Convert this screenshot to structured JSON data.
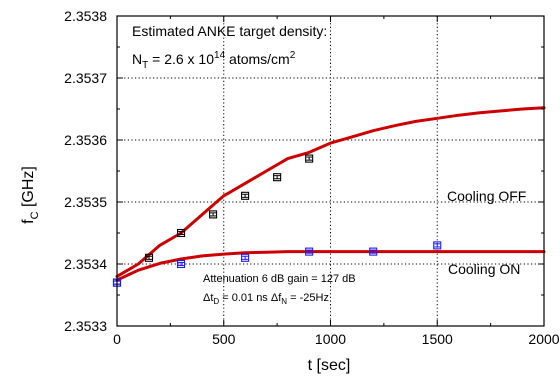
{
  "chart_data": {
    "type": "scatter",
    "title": "",
    "xlabel": "t [sec]",
    "ylabel_main": "f",
    "ylabel_sub": "C",
    "ylabel_unit": " [GHz]",
    "xlim": [
      0,
      2000
    ],
    "ylim": [
      2.3533,
      2.3538
    ],
    "x_ticks": [
      0,
      500,
      1000,
      1500,
      2000
    ],
    "x_tick_labels": [
      "0",
      "500",
      "1000",
      "1500",
      "2000"
    ],
    "y_ticks": [
      2.3533,
      2.3534,
      2.3535,
      2.3536,
      2.3537,
      2.3538
    ],
    "y_tick_labels": [
      "2.3533",
      "2.3534",
      "2.3535",
      "2.3536",
      "2.3537",
      "2.3538"
    ],
    "grid": "dotted",
    "series": [
      {
        "name": "Cooling OFF",
        "color": "#000000",
        "marker": "square",
        "x": [
          0,
          150,
          300,
          450,
          600,
          750,
          900
        ],
        "y": [
          2.35337,
          2.35341,
          2.35345,
          2.35348,
          2.35351,
          2.35354,
          2.35357
        ],
        "yerr": 2.5e-06
      },
      {
        "name": "Cooling ON",
        "color": "#1a1aff",
        "marker": "square",
        "x": [
          0,
          300,
          600,
          900,
          1200,
          1500
        ],
        "y": [
          2.35337,
          2.3534,
          2.35341,
          2.35342,
          2.35342,
          2.35343
        ],
        "yerr": 2.5e-06
      }
    ],
    "fits": [
      {
        "name": "fit-cooling-off",
        "color": "#cc0000",
        "x": [
          0,
          100,
          200,
          300,
          400,
          500,
          600,
          700,
          800,
          900,
          1000,
          1100,
          1200,
          1300,
          1400,
          1500,
          1600,
          1700,
          1800,
          1900,
          2000
        ],
        "y": [
          2.35338,
          2.3534,
          2.35343,
          2.35345,
          2.35348,
          2.35351,
          2.35353,
          2.35355,
          2.35357,
          2.35358,
          2.353595,
          2.353605,
          2.353615,
          2.353623,
          2.35363,
          2.353635,
          2.35364,
          2.353644,
          2.353647,
          2.35365,
          2.353652
        ]
      },
      {
        "name": "fit-cooling-on",
        "color": "#cc0000",
        "x": [
          0,
          100,
          200,
          300,
          400,
          500,
          600,
          700,
          800,
          1000,
          1200,
          1400,
          1600,
          1800,
          2000
        ],
        "y": [
          2.353374,
          2.35339,
          2.353401,
          2.353408,
          2.353413,
          2.353416,
          2.353418,
          2.353419,
          2.35342,
          2.35342,
          2.35342,
          2.35342,
          2.35342,
          2.35342,
          2.35342
        ]
      }
    ],
    "annotations": {
      "density_line1": "Estimated ANKE target density:",
      "density_n": "N",
      "density_n_sub": "T",
      "density_val": " = 2.6 x 10",
      "density_exp": "14",
      "density_unit": " atoms/cm",
      "density_unit_exp": "2",
      "label_off": "Cooling OFF",
      "label_on": "Cooling ON",
      "atten": "Attenuation 6 dB   gain = 127 dB",
      "dt_delta": "Δt",
      "dt_sub": "D",
      "dt_val": " = 0.01 ns   Δf",
      "df_sub": "N",
      "df_val": " = -25Hz"
    }
  }
}
